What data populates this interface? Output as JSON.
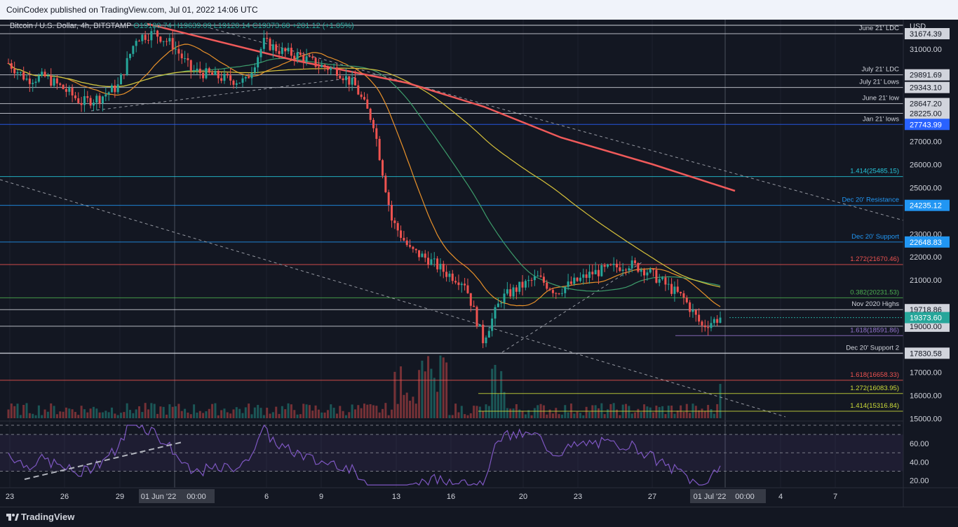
{
  "header": {
    "published": "CoinCodex published on TradingView.com, Jul 01, 2022 14:06 UTC"
  },
  "legend": {
    "symbol": "Bitcoin / U.S. Dollar, 4h, BITSTAMP",
    "open": "O19180.74",
    "high": "H19639.09",
    "low": "L19120.14",
    "close": "C19373.60",
    "change": "+201.12 (+1.05%)"
  },
  "footer": {
    "brand": "TradingView"
  },
  "colors": {
    "bg": "#131722",
    "up": "#26a69a",
    "down": "#ef5350",
    "ma200": "#f05a5a",
    "ma100": "#d6c13a",
    "ma50": "#3d9c6b",
    "ma20": "#e8912a",
    "rsi": "#7e57c2"
  },
  "chart_data": {
    "type": "candlestick",
    "currency": "USD",
    "ylim": [
      14600,
      32800
    ],
    "current_price": "19373.60",
    "x_tick_labels": [
      "23",
      "26",
      "29",
      "01 Jun '22",
      "00:00",
      "6",
      "9",
      "13",
      "16",
      "20",
      "23",
      "27",
      "01 Jul '22",
      "00:00",
      "4",
      "7"
    ],
    "close_series": [
      {
        "date": "2022-05-23",
        "close": 30400
      },
      {
        "date": "2022-05-24",
        "close": 29700
      },
      {
        "date": "2022-05-25",
        "close": 29800
      },
      {
        "date": "2022-05-26",
        "close": 29300
      },
      {
        "date": "2022-05-27",
        "close": 28700
      },
      {
        "date": "2022-05-28",
        "close": 28900
      },
      {
        "date": "2022-05-29",
        "close": 29400
      },
      {
        "date": "2022-05-30",
        "close": 31500
      },
      {
        "date": "2022-05-31",
        "close": 31700
      },
      {
        "date": "2022-06-01",
        "close": 31200
      },
      {
        "date": "2022-06-02",
        "close": 30100
      },
      {
        "date": "2022-06-03",
        "close": 29900
      },
      {
        "date": "2022-06-04",
        "close": 29700
      },
      {
        "date": "2022-06-05",
        "close": 29600
      },
      {
        "date": "2022-06-06",
        "close": 31300
      },
      {
        "date": "2022-06-07",
        "close": 30900
      },
      {
        "date": "2022-06-08",
        "close": 30700
      },
      {
        "date": "2022-06-09",
        "close": 30300
      },
      {
        "date": "2022-06-10",
        "close": 30100
      },
      {
        "date": "2022-06-11",
        "close": 29400
      },
      {
        "date": "2022-06-12",
        "close": 27800
      },
      {
        "date": "2022-06-13",
        "close": 23600
      },
      {
        "date": "2022-06-14",
        "close": 22300
      },
      {
        "date": "2022-06-15",
        "close": 21900
      },
      {
        "date": "2022-06-16",
        "close": 21300
      },
      {
        "date": "2022-06-17",
        "close": 20900
      },
      {
        "date": "2022-06-18",
        "close": 18400
      },
      {
        "date": "2022-06-19",
        "close": 20200
      },
      {
        "date": "2022-06-20",
        "close": 20700
      },
      {
        "date": "2022-06-21",
        "close": 21100
      },
      {
        "date": "2022-06-22",
        "close": 20500
      },
      {
        "date": "2022-06-23",
        "close": 20900
      },
      {
        "date": "2022-06-24",
        "close": 21300
      },
      {
        "date": "2022-06-25",
        "close": 21500
      },
      {
        "date": "2022-06-26",
        "close": 21700
      },
      {
        "date": "2022-06-27",
        "close": 21400
      },
      {
        "date": "2022-06-28",
        "close": 20800
      },
      {
        "date": "2022-06-29",
        "close": 20200
      },
      {
        "date": "2022-06-30",
        "close": 19000
      },
      {
        "date": "2022-07-01",
        "close": 19373.6
      }
    ],
    "price_levels": [
      {
        "value": 31674.39,
        "label": "June 21' LDC",
        "price": "31674.39",
        "color": "#d1d4dc",
        "style": "solid"
      },
      {
        "value": 29891.69,
        "label": "July 21' LDC",
        "price": "29891.69",
        "color": "#d1d4dc",
        "style": "solid"
      },
      {
        "value": 29343.1,
        "label": "July 21' Lows",
        "price": "29343.10",
        "color": "#d1d4dc",
        "style": "solid"
      },
      {
        "value": 28647.2,
        "label": "June 21' low",
        "price": "28647.20",
        "color": "#d1d4dc",
        "style": "solid"
      },
      {
        "value": 28225.0,
        "label": "",
        "price": "28225.00",
        "color": "#d1d4dc",
        "style": "solid"
      },
      {
        "value": 27743.99,
        "label": "Jan 21' lows",
        "price": "27743.99",
        "color": "#2962ff",
        "style": "solid"
      },
      {
        "value": 25485.15,
        "label": "1.414(25485.15)",
        "price": "",
        "color": "#26c6da",
        "style": "solid"
      },
      {
        "value": 24235.12,
        "label": "Dec 20' Resistance",
        "price": "24235.12",
        "color": "#2196f3",
        "style": "solid"
      },
      {
        "value": 22648.83,
        "label": "Dec 20' Support",
        "price": "22648.83",
        "color": "#2196f3",
        "style": "solid"
      },
      {
        "value": 21670.46,
        "label": "1.272(21670.46)",
        "price": "",
        "color": "#ef5350",
        "style": "solid"
      },
      {
        "value": 20231.53,
        "label": "0.382(20231.53)",
        "price": "",
        "color": "#4caf50",
        "style": "solid"
      },
      {
        "value": 19718.86,
        "label": "Nov 2020 Highs",
        "price": "19718.86",
        "color": "#d1d4dc",
        "style": "solid"
      },
      {
        "value": 19000.0,
        "label": "",
        "price": "19000.00",
        "color": "#d1d4dc",
        "style": "solid"
      },
      {
        "value": 18591.86,
        "label": "1.618(18591.86)",
        "price": "",
        "color": "#9575cd",
        "style": "solid"
      },
      {
        "value": 17830.58,
        "label": "Dec 20' Support 2",
        "price": "17830.58",
        "color": "#d1d4dc",
        "style": "solid"
      },
      {
        "value": 16658.33,
        "label": "1.618(16658.33)",
        "price": "",
        "color": "#ef5350",
        "style": "solid"
      },
      {
        "value": 16083.95,
        "label": "1.272(16083.95)",
        "price": "",
        "color": "#cddc39",
        "style": "solid"
      },
      {
        "value": 15316.84,
        "label": "1.414(15316.84)",
        "price": "",
        "color": "#cddc39",
        "style": "solid"
      }
    ],
    "y_ticks": [
      31000,
      30000,
      27000,
      26000,
      25000,
      23000,
      22000,
      21000,
      17000,
      16000,
      15000
    ],
    "rsi": {
      "ticks": [
        60.0,
        40.0,
        20.0
      ],
      "upper": 70,
      "lower": 30
    }
  }
}
